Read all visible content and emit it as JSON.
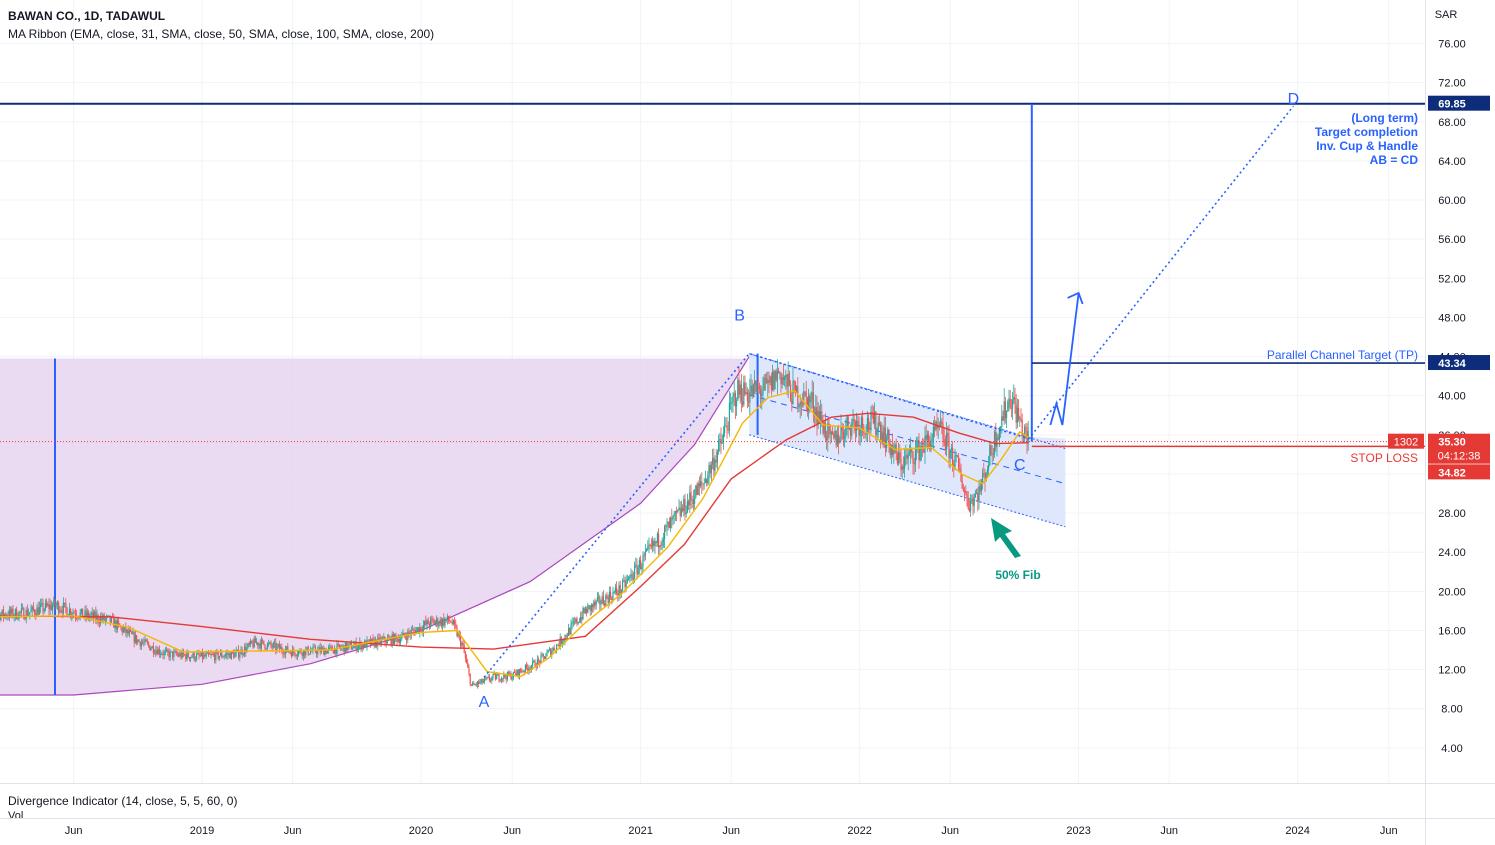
{
  "header": {
    "title": "BAWAN CO., 1D, TADAWUL",
    "indicator": "MA Ribbon (EMA, close, 31, SMA, close, 50, SMA, close, 100, SMA, close, 200)",
    "sub_indicator": "Divergence Indicator (14, close, 5, 5, 60, 0)",
    "vol_label": "Vol"
  },
  "colors": {
    "up": "#26a69a",
    "down": "#ef5350",
    "ema31": "#f5b700",
    "sma200": "#e53935",
    "cup_fill": "#e6d3f0",
    "cup_line": "#ab47bc",
    "annotation_blue": "#2962ff",
    "navy": "#0d2c7a",
    "channel_fill": "#d7e1fb",
    "stop_red": "#e53935",
    "fib_green": "#089981"
  },
  "chart_data": {
    "type": "candlestick",
    "price_unit": "SAR",
    "y_ticks": [
      "4.00",
      "8.00",
      "12.00",
      "16.00",
      "20.00",
      "24.00",
      "28.00",
      "32.00",
      "36.00",
      "40.00",
      "44.00",
      "48.00",
      "52.00",
      "56.00",
      "60.00",
      "64.00",
      "68.00",
      "72.00",
      "76.00"
    ],
    "y_range": [
      0,
      80
    ],
    "x_ticks": [
      "Jun",
      "2019",
      "Jun",
      "2020",
      "Jun",
      "2021",
      "Jun",
      "2022",
      "Jun",
      "2023",
      "Jun",
      "2024",
      "Jun"
    ],
    "price_path": [
      [
        "2018-01-01",
        17.5
      ],
      [
        "2018-03-15",
        17.8
      ],
      [
        "2018-05-01",
        18.6
      ],
      [
        "2018-06-15",
        17.6
      ],
      [
        "2018-08-01",
        17.0
      ],
      [
        "2018-09-15",
        15.0
      ],
      [
        "2018-11-01",
        13.6
      ],
      [
        "2019-01-01",
        13.3
      ],
      [
        "2019-03-01",
        13.6
      ],
      [
        "2019-04-01",
        14.8
      ],
      [
        "2019-06-01",
        13.8
      ],
      [
        "2019-08-01",
        14.0
      ],
      [
        "2019-10-01",
        14.6
      ],
      [
        "2019-12-01",
        15.3
      ],
      [
        "2020-01-15",
        16.8
      ],
      [
        "2020-02-20",
        17.0
      ],
      [
        "2020-03-10",
        14.5
      ],
      [
        "2020-03-25",
        10.3
      ],
      [
        "2020-05-01",
        11.2
      ],
      [
        "2020-06-01",
        11.4
      ],
      [
        "2020-07-15",
        12.8
      ],
      [
        "2020-08-15",
        14.5
      ],
      [
        "2020-10-01",
        18.0
      ],
      [
        "2020-12-01",
        20.3
      ],
      [
        "2021-01-15",
        24.0
      ],
      [
        "2021-03-01",
        27.5
      ],
      [
        "2021-04-15",
        31.0
      ],
      [
        "2021-05-15",
        35.0
      ],
      [
        "2021-06-10",
        40.5
      ],
      [
        "2021-07-01",
        40.3
      ],
      [
        "2021-08-01",
        40.7
      ],
      [
        "2021-08-20",
        42.5
      ],
      [
        "2021-09-10",
        40.3
      ],
      [
        "2021-10-15",
        39.3
      ],
      [
        "2021-11-15",
        35.2
      ],
      [
        "2021-12-15",
        37.2
      ],
      [
        "2022-02-01",
        37.1
      ],
      [
        "2022-03-10",
        33.0
      ],
      [
        "2022-04-10",
        34.5
      ],
      [
        "2022-05-15",
        36.5
      ],
      [
        "2022-06-15",
        32.5
      ],
      [
        "2022-07-01",
        29.0
      ],
      [
        "2022-07-20",
        30.3
      ],
      [
        "2022-08-20",
        36.7
      ],
      [
        "2022-09-10",
        40.0
      ],
      [
        "2022-10-01",
        36.3
      ],
      [
        "2022-10-10",
        35.3
      ]
    ],
    "ema31_path": [
      [
        "2018-01-01",
        17.4
      ],
      [
        "2018-06-01",
        17.5
      ],
      [
        "2018-09-01",
        16.3
      ],
      [
        "2018-12-01",
        13.8
      ],
      [
        "2019-04-01",
        13.9
      ],
      [
        "2019-08-01",
        14.0
      ],
      [
        "2020-01-01",
        15.8
      ],
      [
        "2020-03-01",
        16.0
      ],
      [
        "2020-04-20",
        11.8
      ],
      [
        "2020-06-15",
        11.3
      ],
      [
        "2020-08-01",
        13.2
      ],
      [
        "2020-10-01",
        16.8
      ],
      [
        "2020-12-01",
        19.8
      ],
      [
        "2021-02-15",
        24.5
      ],
      [
        "2021-04-15",
        29.5
      ],
      [
        "2021-06-20",
        37.2
      ],
      [
        "2021-08-01",
        39.8
      ],
      [
        "2021-09-15",
        40.5
      ],
      [
        "2021-11-01",
        37.0
      ],
      [
        "2022-01-01",
        36.7
      ],
      [
        "2022-03-01",
        34.5
      ],
      [
        "2022-05-01",
        34.7
      ],
      [
        "2022-06-20",
        32.0
      ],
      [
        "2022-07-25",
        31.0
      ],
      [
        "2022-08-25",
        33.5
      ],
      [
        "2022-09-25",
        36.3
      ],
      [
        "2022-10-10",
        35.7
      ]
    ],
    "sma200_path": [
      [
        "2018-01-01",
        17.5
      ],
      [
        "2018-08-01",
        17.4
      ],
      [
        "2019-01-01",
        16.4
      ],
      [
        "2019-07-01",
        15.1
      ],
      [
        "2020-01-01",
        14.3
      ],
      [
        "2020-05-01",
        14.1
      ],
      [
        "2020-10-01",
        15.4
      ],
      [
        "2021-01-01",
        20.5
      ],
      [
        "2021-03-15",
        24.8
      ],
      [
        "2021-06-01",
        31.5
      ],
      [
        "2021-09-01",
        35.5
      ],
      [
        "2021-11-15",
        37.8
      ],
      [
        "2022-01-15",
        38.2
      ],
      [
        "2022-04-01",
        37.8
      ],
      [
        "2022-06-15",
        36.2
      ],
      [
        "2022-08-15",
        35.1
      ],
      [
        "2022-10-10",
        35.2
      ]
    ],
    "cup_arc": [
      [
        "2017-12-01",
        9.4
      ],
      [
        "2018-06-01",
        9.4
      ],
      [
        "2019-01-01",
        10.5
      ],
      [
        "2019-07-01",
        12.6
      ],
      [
        "2020-01-01",
        16.0
      ],
      [
        "2020-07-01",
        21.0
      ],
      [
        "2021-01-01",
        29.0
      ],
      [
        "2021-04-01",
        35.0
      ],
      [
        "2021-07-01",
        44.0
      ]
    ],
    "cup_top": 43.8,
    "cup_marker_date": "2018-05-01",
    "channel": {
      "upper": [
        [
          "2021-07-01",
          44.3
        ],
        [
          "2022-10-10",
          35.8
        ]
      ],
      "lower": [
        [
          "2021-07-01",
          36.0
        ],
        [
          "2022-12-10",
          26.6
        ]
      ],
      "mid": [
        [
          "2021-07-01",
          40.1
        ],
        [
          "2022-12-10",
          31.0
        ]
      ]
    },
    "channel_height_marker": {
      "date": "2021-07-15",
      "from": 36.0,
      "to": 44.3
    },
    "dotted_projection": [
      [
        "2020-04-15",
        11.2
      ],
      [
        "2021-07-01",
        44.3
      ],
      [
        "2022-10-10",
        35.6
      ],
      [
        "2023-12-25",
        69.6
      ]
    ],
    "target_vertical": {
      "date": "2022-10-15",
      "from": 35.3,
      "to": 69.85
    },
    "breakout_arrow": [
      [
        "2022-11-15",
        37.0
      ],
      [
        "2022-11-25",
        39.2
      ],
      [
        "2022-12-05",
        37.0
      ],
      [
        "2023-01-01",
        50.5
      ]
    ],
    "points": [
      {
        "label": "A",
        "date": "2020-04-15",
        "price": 8.2
      },
      {
        "label": "B",
        "date": "2021-06-15",
        "price": 47.7
      },
      {
        "label": "C",
        "date": "2022-10-05",
        "price": 32.8
      },
      {
        "label": "D",
        "date": "2023-12-25",
        "price": 69.8
      }
    ],
    "levels": [
      {
        "name": "long-term-target",
        "price": 69.85,
        "label": "69.85"
      },
      {
        "name": "channel-target",
        "price": 43.34,
        "label": "43.34",
        "text": "Parallel Channel Target (TP)"
      },
      {
        "name": "last-price",
        "price": 35.3,
        "label": "35.30"
      },
      {
        "name": "stop-loss",
        "price": 34.82,
        "label": "34.82",
        "text": "STOP LOSS"
      }
    ],
    "countdown": "04:12:38",
    "symbol_code": "1302",
    "target_note": [
      "(Long term)",
      "Target completion",
      "Inv. Cup & Handle",
      "AB = CD"
    ],
    "fib_label": "50% Fib"
  }
}
